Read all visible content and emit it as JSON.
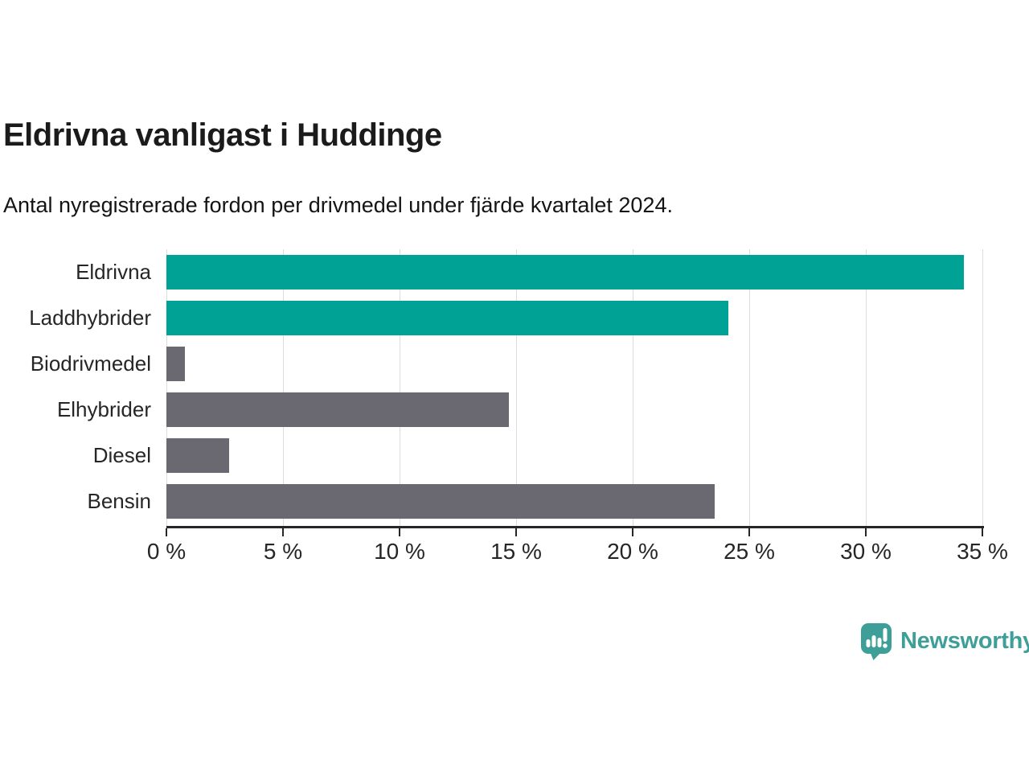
{
  "header": {
    "title": "Eldrivna vanligast i Huddinge",
    "subtitle": "Antal nyregistrerade fordon per drivmedel under fjärde kvartalet 2024."
  },
  "chart_data": {
    "type": "bar",
    "orientation": "horizontal",
    "title": "Eldrivna vanligast i Huddinge",
    "subtitle": "Antal nyregistrerade fordon per drivmedel under fjärde kvartalet 2024.",
    "categories": [
      "Eldrivna",
      "Laddhybrider",
      "Biodrivmedel",
      "Elhybrider",
      "Diesel",
      "Bensin"
    ],
    "values": [
      34.2,
      24.1,
      0.8,
      14.7,
      2.7,
      23.5
    ],
    "unit": "%",
    "bar_colors": [
      "#00a296",
      "#00a296",
      "#6a6870",
      "#6a6870",
      "#6a6870",
      "#6a6870"
    ],
    "highlight_color": "#00a296",
    "default_color": "#6a6870",
    "xlabel": "",
    "ylabel": "",
    "xlim": [
      0,
      35
    ],
    "x_ticks": [
      0,
      5,
      10,
      15,
      20,
      25,
      30,
      35
    ],
    "x_tick_labels": [
      "0 %",
      "5 %",
      "10 %",
      "15 %",
      "20 %",
      "25 %",
      "30 %",
      "35 %"
    ],
    "grid": "vertical gridlines on",
    "legend": "none"
  },
  "branding": {
    "name": "Newsworthy",
    "logo_icon": "newsworthy-speech-bubble-bar-chart-icon",
    "color": "#3d9f98"
  },
  "colors": {
    "background": "#ffffff",
    "teal_bar": "#00a296",
    "gray_bar": "#6a6870",
    "gridline": "#dcdcdc",
    "axis_line": "#262626",
    "title_text": "#1b1b1b",
    "label_text": "#262626"
  }
}
